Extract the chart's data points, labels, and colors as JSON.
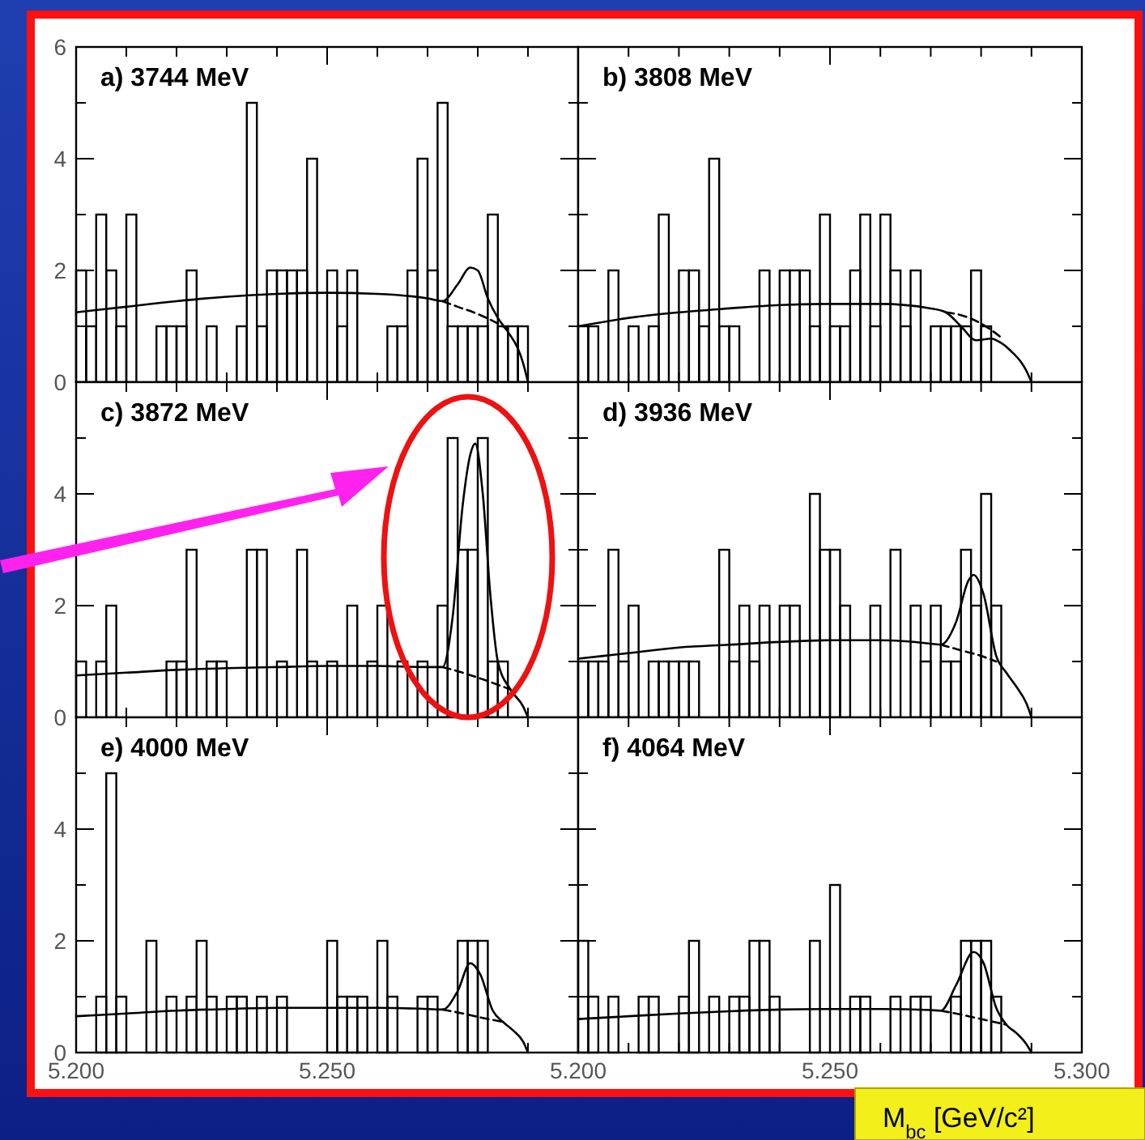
{
  "chart_data": [
    {
      "type": "histogram",
      "title": "a) 3744 MeV",
      "bins": [
        5.2,
        5.202,
        5.204,
        5.206,
        5.208,
        5.21,
        5.212,
        5.214,
        5.216,
        5.218,
        5.22,
        5.222,
        5.224,
        5.226,
        5.228,
        5.23,
        5.232,
        5.234,
        5.236,
        5.238,
        5.24,
        5.242,
        5.244,
        5.246,
        5.248,
        5.25,
        5.252,
        5.254,
        5.256,
        5.258,
        5.26,
        5.262,
        5.264,
        5.266,
        5.268,
        5.27,
        5.272,
        5.274,
        5.276,
        5.278,
        5.28,
        5.282,
        5.284,
        5.286,
        5.288,
        5.29
      ],
      "values": [
        2,
        1,
        3,
        2,
        1,
        3,
        0,
        0,
        1,
        1,
        1,
        2,
        0,
        1,
        0,
        0,
        1,
        5,
        1,
        2,
        2,
        2,
        2,
        4,
        0,
        2,
        1,
        2,
        0,
        0,
        0,
        1,
        1,
        2,
        4,
        2,
        5,
        1,
        1,
        1,
        1,
        3,
        1,
        1,
        1
      ],
      "color": "#000000",
      "series": [
        {
          "type": "line",
          "color": "#000000",
          "line_style": "solid",
          "x": [
            5.2,
            5.21,
            5.22,
            5.23,
            5.24,
            5.25,
            5.26,
            5.27,
            5.273,
            5.276,
            5.2785,
            5.28,
            5.282,
            5.284,
            5.286,
            5.288,
            5.289,
            5.29
          ],
          "values": [
            1.25,
            1.35,
            1.45,
            1.53,
            1.58,
            1.6,
            1.58,
            1.5,
            1.45,
            1.75,
            2.05,
            2.0,
            1.5,
            1.15,
            0.9,
            0.6,
            0.35,
            0
          ]
        },
        {
          "type": "line",
          "color": "#000000",
          "line_style": "dashed",
          "x": [
            5.273,
            5.276,
            5.28,
            5.284,
            5.286
          ],
          "values": [
            1.45,
            1.35,
            1.22,
            1.05,
            0.95
          ]
        }
      ],
      "xlim": [
        5.2,
        5.3
      ],
      "ylim": [
        0,
        6
      ],
      "xticks": [
        5.2,
        {
          "value": 5.21,
          "label": null
        },
        {
          "value": 5.22,
          "label": null
        },
        {
          "value": 5.23,
          "label": null
        },
        {
          "value": 5.24,
          "label": null
        },
        5.25,
        {
          "value": 5.26,
          "label": null
        },
        {
          "value": 5.27,
          "label": null
        },
        {
          "value": 5.28,
          "label": null
        },
        {
          "value": 5.29,
          "label": null
        },
        5.3
      ],
      "yticks": [
        0,
        {
          "value": 1,
          "label": null
        },
        2,
        {
          "value": 3,
          "label": null
        },
        4,
        {
          "value": 5,
          "label": null
        },
        6
      ],
      "tick_labels": "y"
    },
    {
      "type": "histogram",
      "title": "b) 3808 MeV",
      "bins": [
        5.2,
        5.202,
        5.204,
        5.206,
        5.208,
        5.21,
        5.212,
        5.214,
        5.216,
        5.218,
        5.22,
        5.222,
        5.224,
        5.226,
        5.228,
        5.23,
        5.232,
        5.234,
        5.236,
        5.238,
        5.24,
        5.242,
        5.244,
        5.246,
        5.248,
        5.25,
        5.252,
        5.254,
        5.256,
        5.258,
        5.26,
        5.262,
        5.264,
        5.266,
        5.268,
        5.27,
        5.272,
        5.274,
        5.276,
        5.278,
        5.28,
        5.282,
        5.284,
        5.286,
        5.288,
        5.29
      ],
      "values": [
        1,
        1,
        0,
        2,
        0,
        1,
        0,
        1,
        3,
        0,
        2,
        2,
        1,
        4,
        1,
        1,
        0,
        0,
        2,
        0,
        2,
        2,
        2,
        1,
        3,
        1,
        1,
        2,
        3,
        1,
        3,
        2,
        1,
        2,
        0,
        1,
        1,
        1,
        1,
        2,
        1,
        0,
        0,
        0,
        0
      ],
      "color": "#000000",
      "series": [
        {
          "type": "line",
          "color": "#000000",
          "line_style": "solid",
          "x": [
            5.2,
            5.21,
            5.22,
            5.23,
            5.24,
            5.25,
            5.26,
            5.27,
            5.273,
            5.276,
            5.279,
            5.282,
            5.284,
            5.286,
            5.288,
            5.289,
            5.29
          ],
          "values": [
            1.0,
            1.15,
            1.25,
            1.32,
            1.38,
            1.4,
            1.4,
            1.32,
            1.25,
            1.0,
            0.75,
            0.78,
            0.7,
            0.55,
            0.35,
            0.2,
            0
          ]
        },
        {
          "type": "line",
          "color": "#000000",
          "line_style": "dashed",
          "x": [
            5.273,
            5.276,
            5.28,
            5.284
          ],
          "values": [
            1.25,
            1.2,
            1.05,
            0.8
          ]
        }
      ],
      "xlim": [
        5.2,
        5.3
      ],
      "ylim": [
        0,
        6
      ],
      "xticks": [
        5.2,
        {
          "value": 5.21,
          "label": null
        },
        {
          "value": 5.22,
          "label": null
        },
        {
          "value": 5.23,
          "label": null
        },
        {
          "value": 5.24,
          "label": null
        },
        5.25,
        {
          "value": 5.26,
          "label": null
        },
        {
          "value": 5.27,
          "label": null
        },
        {
          "value": 5.28,
          "label": null
        },
        {
          "value": 5.29,
          "label": null
        },
        5.3
      ],
      "yticks": [
        0,
        {
          "value": 1,
          "label": null
        },
        2,
        {
          "value": 3,
          "label": null
        },
        4,
        {
          "value": 5,
          "label": null
        },
        6
      ],
      "tick_labels": false
    },
    {
      "type": "histogram",
      "title": "c) 3872 MeV",
      "bins": [
        5.2,
        5.202,
        5.204,
        5.206,
        5.208,
        5.21,
        5.212,
        5.214,
        5.216,
        5.218,
        5.22,
        5.222,
        5.224,
        5.226,
        5.228,
        5.23,
        5.232,
        5.234,
        5.236,
        5.238,
        5.24,
        5.242,
        5.244,
        5.246,
        5.248,
        5.25,
        5.252,
        5.254,
        5.256,
        5.258,
        5.26,
        5.262,
        5.264,
        5.266,
        5.268,
        5.27,
        5.272,
        5.274,
        5.276,
        5.278,
        5.28,
        5.282,
        5.284,
        5.286,
        5.288,
        5.29
      ],
      "values": [
        1,
        0,
        1,
        2,
        0,
        0,
        0,
        0,
        0,
        1,
        1,
        3,
        0,
        1,
        1,
        0,
        0,
        3,
        3,
        0,
        1,
        0,
        3,
        1,
        0,
        1,
        0,
        2,
        0,
        1,
        2,
        0,
        1,
        0,
        1,
        0,
        2,
        5,
        3,
        3,
        5,
        1,
        1,
        0,
        0
      ],
      "color": "#000000",
      "series": [
        {
          "type": "line",
          "color": "#000000",
          "line_style": "solid",
          "x": [
            5.2,
            5.21,
            5.22,
            5.23,
            5.24,
            5.25,
            5.26,
            5.27,
            5.273,
            5.275,
            5.277,
            5.2785,
            5.2795,
            5.281,
            5.2825,
            5.284,
            5.2865,
            5.289,
            5.29
          ],
          "values": [
            0.75,
            0.8,
            0.85,
            0.88,
            0.9,
            0.92,
            0.92,
            0.9,
            0.9,
            1.8,
            3.8,
            4.7,
            4.9,
            4.0,
            2.2,
            1.0,
            0.5,
            0.2,
            0
          ]
        },
        {
          "type": "line",
          "color": "#000000",
          "line_style": "dashed",
          "x": [
            5.273,
            5.277,
            5.281,
            5.2865
          ],
          "values": [
            0.9,
            0.8,
            0.68,
            0.5
          ]
        }
      ],
      "xlim": [
        5.2,
        5.3
      ],
      "ylim": [
        0,
        6
      ],
      "xticks": [
        5.2,
        {
          "value": 5.21,
          "label": null
        },
        {
          "value": 5.22,
          "label": null
        },
        {
          "value": 5.23,
          "label": null
        },
        {
          "value": 5.24,
          "label": null
        },
        5.25,
        {
          "value": 5.26,
          "label": null
        },
        {
          "value": 5.27,
          "label": null
        },
        {
          "value": 5.28,
          "label": null
        },
        {
          "value": 5.29,
          "label": null
        },
        5.3
      ],
      "yticks": [
        0,
        {
          "value": 1,
          "label": null
        },
        2,
        {
          "value": 3,
          "label": null
        },
        4,
        {
          "value": 5,
          "label": null
        },
        {
          "value": 6,
          "label": null
        }
      ],
      "tick_labels": "y"
    },
    {
      "type": "histogram",
      "title": "d) 3936 MeV",
      "bins": [
        5.2,
        5.202,
        5.204,
        5.206,
        5.208,
        5.21,
        5.212,
        5.214,
        5.216,
        5.218,
        5.22,
        5.222,
        5.224,
        5.226,
        5.228,
        5.23,
        5.232,
        5.234,
        5.236,
        5.238,
        5.24,
        5.242,
        5.244,
        5.246,
        5.248,
        5.25,
        5.252,
        5.254,
        5.256,
        5.258,
        5.26,
        5.262,
        5.264,
        5.266,
        5.268,
        5.27,
        5.272,
        5.274,
        5.276,
        5.278,
        5.28,
        5.282,
        5.284,
        5.286,
        5.288,
        5.29
      ],
      "values": [
        1,
        1,
        1,
        3,
        1,
        2,
        0,
        1,
        1,
        1,
        1,
        1,
        0,
        0,
        3,
        1,
        2,
        1,
        2,
        0,
        2,
        2,
        0,
        4,
        3,
        3,
        2,
        0,
        0,
        2,
        0,
        3,
        0,
        2,
        1,
        2,
        1,
        1,
        3,
        2,
        4,
        2,
        0,
        0,
        0
      ],
      "color": "#000000",
      "series": [
        {
          "type": "line",
          "color": "#000000",
          "line_style": "solid",
          "x": [
            5.2,
            5.21,
            5.22,
            5.23,
            5.24,
            5.25,
            5.26,
            5.27,
            5.272,
            5.275,
            5.2775,
            5.2785,
            5.2805,
            5.283,
            5.285,
            5.287,
            5.289,
            5.29
          ],
          "values": [
            1.05,
            1.15,
            1.25,
            1.3,
            1.35,
            1.38,
            1.38,
            1.32,
            1.3,
            1.7,
            2.45,
            2.55,
            2.2,
            1.1,
            0.8,
            0.55,
            0.25,
            0
          ]
        },
        {
          "type": "line",
          "color": "#000000",
          "line_style": "dashed",
          "x": [
            5.272,
            5.276,
            5.28,
            5.283
          ],
          "values": [
            1.3,
            1.2,
            1.1,
            1.0
          ]
        }
      ],
      "xlim": [
        5.2,
        5.3
      ],
      "ylim": [
        0,
        6
      ],
      "xticks": [
        5.2,
        {
          "value": 5.21,
          "label": null
        },
        {
          "value": 5.22,
          "label": null
        },
        {
          "value": 5.23,
          "label": null
        },
        {
          "value": 5.24,
          "label": null
        },
        5.25,
        {
          "value": 5.26,
          "label": null
        },
        {
          "value": 5.27,
          "label": null
        },
        {
          "value": 5.28,
          "label": null
        },
        {
          "value": 5.29,
          "label": null
        },
        5.3
      ],
      "yticks": [
        0,
        {
          "value": 1,
          "label": null
        },
        2,
        {
          "value": 3,
          "label": null
        },
        4,
        {
          "value": 5,
          "label": null
        },
        {
          "value": 6,
          "label": null
        }
      ],
      "tick_labels": false
    },
    {
      "type": "histogram",
      "title": "e) 4000 MeV",
      "bins": [
        5.2,
        5.202,
        5.204,
        5.206,
        5.208,
        5.21,
        5.212,
        5.214,
        5.216,
        5.218,
        5.22,
        5.222,
        5.224,
        5.226,
        5.228,
        5.23,
        5.232,
        5.234,
        5.236,
        5.238,
        5.24,
        5.242,
        5.244,
        5.246,
        5.248,
        5.25,
        5.252,
        5.254,
        5.256,
        5.258,
        5.26,
        5.262,
        5.264,
        5.266,
        5.268,
        5.27,
        5.272,
        5.274,
        5.276,
        5.278,
        5.28,
        5.282,
        5.284,
        5.286,
        5.288,
        5.29
      ],
      "values": [
        0,
        0,
        1,
        5,
        1,
        0,
        0,
        2,
        0,
        1,
        0,
        1,
        2,
        1,
        0,
        1,
        1,
        0,
        1,
        0,
        1,
        0,
        0,
        0,
        0,
        2,
        1,
        1,
        1,
        0,
        2,
        1,
        0,
        0,
        1,
        1,
        0,
        0,
        2,
        2,
        2,
        0,
        0,
        0,
        0
      ],
      "color": "#000000",
      "series": [
        {
          "type": "line",
          "color": "#000000",
          "line_style": "solid",
          "x": [
            5.2,
            5.21,
            5.22,
            5.23,
            5.24,
            5.25,
            5.26,
            5.27,
            5.273,
            5.276,
            5.2785,
            5.2805,
            5.283,
            5.285,
            5.287,
            5.289,
            5.29
          ],
          "values": [
            0.65,
            0.7,
            0.75,
            0.78,
            0.8,
            0.8,
            0.8,
            0.78,
            0.77,
            1.1,
            1.6,
            1.4,
            0.75,
            0.55,
            0.4,
            0.2,
            0
          ]
        },
        {
          "type": "line",
          "color": "#000000",
          "line_style": "dashed",
          "x": [
            5.273,
            5.277,
            5.281,
            5.285
          ],
          "values": [
            0.77,
            0.7,
            0.62,
            0.55
          ]
        }
      ],
      "xlim": [
        5.2,
        5.3
      ],
      "ylim": [
        0,
        6
      ],
      "xticks": [
        {
          "value": 5.2,
          "label": "5.200"
        },
        {
          "value": 5.21,
          "label": null
        },
        {
          "value": 5.22,
          "label": null
        },
        {
          "value": 5.23,
          "label": null
        },
        {
          "value": 5.24,
          "label": null
        },
        {
          "value": 5.25,
          "label": "5.250"
        },
        {
          "value": 5.26,
          "label": null
        },
        {
          "value": 5.27,
          "label": null
        },
        {
          "value": 5.28,
          "label": null
        },
        {
          "value": 5.29,
          "label": null
        },
        {
          "value": 5.3,
          "label": null
        }
      ],
      "yticks": [
        0,
        {
          "value": 1,
          "label": null
        },
        2,
        {
          "value": 3,
          "label": null
        },
        4,
        {
          "value": 5,
          "label": null
        },
        {
          "value": 6,
          "label": null
        }
      ]
    },
    {
      "type": "histogram",
      "title": "f) 4064 MeV",
      "xlabel": "M$_{bc}$ [GeV/c²]",
      "bins": [
        5.2,
        5.202,
        5.204,
        5.206,
        5.208,
        5.21,
        5.212,
        5.214,
        5.216,
        5.218,
        5.22,
        5.222,
        5.224,
        5.226,
        5.228,
        5.23,
        5.232,
        5.234,
        5.236,
        5.238,
        5.24,
        5.242,
        5.244,
        5.246,
        5.248,
        5.25,
        5.252,
        5.254,
        5.256,
        5.258,
        5.26,
        5.262,
        5.264,
        5.266,
        5.268,
        5.27,
        5.272,
        5.274,
        5.276,
        5.278,
        5.28,
        5.282,
        5.284,
        5.286,
        5.288,
        5.29
      ],
      "values": [
        2,
        1,
        0,
        1,
        0,
        0,
        1,
        1,
        0,
        0,
        1,
        2,
        0,
        1,
        0,
        1,
        1,
        2,
        2,
        1,
        0,
        0,
        0,
        2,
        0,
        3,
        0,
        1,
        1,
        0,
        0,
        1,
        0,
        1,
        1,
        0,
        0,
        1,
        2,
        2,
        2,
        1,
        0,
        0,
        0
      ],
      "color": "#000000",
      "series": [
        {
          "type": "line",
          "color": "#000000",
          "line_style": "solid",
          "x": [
            5.2,
            5.21,
            5.22,
            5.23,
            5.24,
            5.25,
            5.26,
            5.27,
            5.272,
            5.275,
            5.2785,
            5.2805,
            5.283,
            5.285,
            5.287,
            5.289,
            5.29
          ],
          "values": [
            0.6,
            0.65,
            0.7,
            0.74,
            0.77,
            0.78,
            0.78,
            0.76,
            0.75,
            1.2,
            1.8,
            1.6,
            0.8,
            0.5,
            0.35,
            0.15,
            0
          ]
        },
        {
          "type": "line",
          "color": "#000000",
          "line_style": "dashed",
          "x": [
            5.272,
            5.276,
            5.28,
            5.285
          ],
          "values": [
            0.75,
            0.68,
            0.6,
            0.5
          ]
        }
      ],
      "xlim": [
        5.2,
        5.3
      ],
      "ylim": [
        0,
        6
      ],
      "xticks": [
        {
          "value": 5.2,
          "label": "5.200"
        },
        {
          "value": 5.21,
          "label": null
        },
        {
          "value": 5.22,
          "label": null
        },
        {
          "value": 5.23,
          "label": null
        },
        {
          "value": 5.24,
          "label": null
        },
        {
          "value": 5.25,
          "label": "5.250"
        },
        {
          "value": 5.26,
          "label": null
        },
        {
          "value": 5.27,
          "label": null
        },
        {
          "value": 5.28,
          "label": null
        },
        {
          "value": 5.29,
          "label": null
        },
        {
          "value": 5.3,
          "label": "5.300"
        }
      ],
      "yticks": [
        0,
        {
          "value": 1,
          "label": null
        },
        2,
        {
          "value": 3,
          "label": null
        },
        4,
        {
          "value": 5,
          "label": null
        },
        {
          "value": 6,
          "label": null
        }
      ],
      "tick_labels": "x"
    }
  ]
}
